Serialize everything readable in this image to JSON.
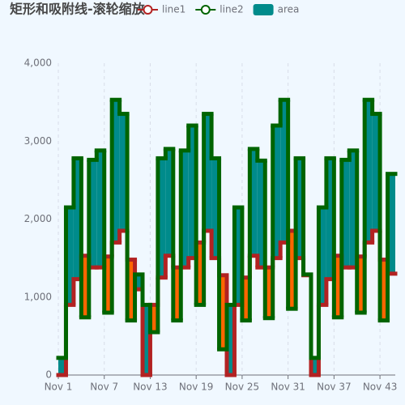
{
  "chart_data": {
    "type": "step-band",
    "title": "矩形和吸附线-滚轮缩放",
    "categories": [
      "Nov 1",
      null,
      null,
      null,
      null,
      null,
      "Nov 7",
      null,
      null,
      null,
      null,
      null,
      "Nov 13",
      null,
      null,
      null,
      null,
      null,
      "Nov 19",
      null,
      null,
      null,
      null,
      null,
      "Nov 25",
      null,
      null,
      null,
      null,
      null,
      "Nov 31",
      null,
      null,
      null,
      null,
      null,
      "Nov 37",
      null,
      null,
      null,
      null,
      null,
      "Nov 43",
      null
    ],
    "series": [
      {
        "name": "line1",
        "color": "#b22222",
        "values": [
          0,
          900,
          1230,
          1530,
          1380,
          1380,
          1520,
          1700,
          1850,
          1480,
          1100,
          0,
          900,
          1250,
          1530,
          1380,
          1380,
          1500,
          1700,
          1850,
          1500,
          1280,
          0,
          900,
          1250,
          1530,
          1380,
          1380,
          1500,
          1700,
          1850,
          1500,
          1280,
          0,
          900,
          1230,
          1530,
          1380,
          1380,
          1520,
          1700,
          1850,
          1480,
          1300
        ]
      },
      {
        "name": "line2",
        "color": "#006400",
        "values": [
          220,
          2150,
          2780,
          740,
          2760,
          2880,
          800,
          3530,
          3350,
          700,
          1290,
          900,
          550,
          2780,
          2900,
          700,
          2880,
          3200,
          900,
          3350,
          2780,
          330,
          900,
          2150,
          700,
          2900,
          2750,
          730,
          3200,
          3530,
          850,
          2780,
          1290,
          220,
          2150,
          2780,
          740,
          2760,
          2880,
          800,
          3530,
          3350,
          700,
          2580
        ]
      },
      {
        "name": "area",
        "color": "#008b8b",
        "inverse_color": "#ff6600"
      }
    ],
    "ylim": [
      0,
      4000
    ],
    "yticks": [
      0,
      {
        "value": 1000,
        "label": "1,000"
      },
      {
        "value": 2000,
        "label": "2,000"
      },
      {
        "value": 3000,
        "label": "3,000"
      },
      {
        "value": 4000,
        "label": "4,000"
      }
    ],
    "grid": true
  }
}
